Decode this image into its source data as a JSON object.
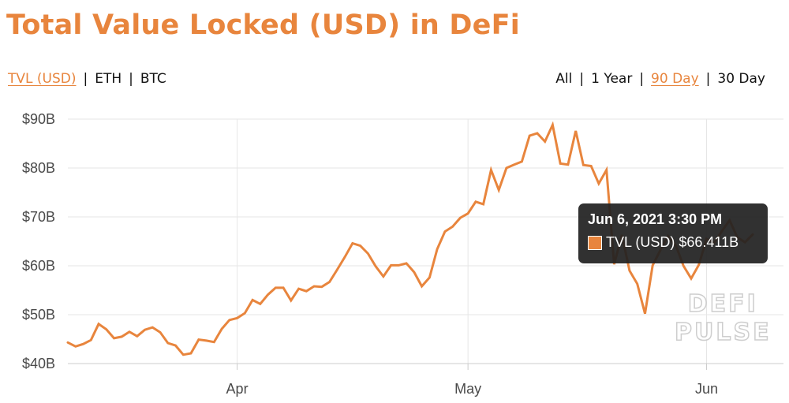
{
  "title": "Total Value Locked (USD) in DeFi",
  "metric_toggle": {
    "options": [
      "TVL (USD)",
      "ETH",
      "BTC"
    ],
    "active": "TVL (USD)"
  },
  "range_toggle": {
    "options": [
      "All",
      "1 Year",
      "90 Day",
      "30 Day"
    ],
    "active": "90 Day"
  },
  "watermark": {
    "line1": "DEFI",
    "line2": "PULSE"
  },
  "tooltip": {
    "date": "Jun 6, 2021 3:30 PM",
    "series": "TVL (USD)",
    "value": "$66.411B"
  },
  "colors": {
    "series": "#e8853d",
    "title": "#e8853d",
    "grid": "#e6e6e6"
  },
  "chart_data": {
    "type": "line",
    "ylim": [
      40,
      90
    ],
    "yticks": [
      {
        "value": 40,
        "label": "$40B"
      },
      {
        "value": 50,
        "label": "$50B"
      },
      {
        "value": 60,
        "label": "$60B"
      },
      {
        "value": 70,
        "label": "$70B"
      },
      {
        "value": 80,
        "label": "$80B"
      },
      {
        "value": 90,
        "label": "$90B"
      }
    ],
    "xlim": [
      "2021-03-10",
      "2021-06-11"
    ],
    "xticks": [
      {
        "date": "2021-04-01",
        "label": "Apr"
      },
      {
        "date": "2021-05-01",
        "label": "May"
      },
      {
        "date": "2021-06-01",
        "label": "Jun"
      }
    ],
    "grid": true,
    "legend": "none",
    "series": [
      {
        "values": [
          [
            "2021-03-10",
            44.3
          ],
          [
            "2021-03-11",
            43.5
          ],
          [
            "2021-03-12",
            44.0
          ],
          [
            "2021-03-13",
            44.8
          ],
          [
            "2021-03-14",
            48.1
          ],
          [
            "2021-03-15",
            47.0
          ],
          [
            "2021-03-16",
            45.2
          ],
          [
            "2021-03-17",
            45.5
          ],
          [
            "2021-03-18",
            46.5
          ],
          [
            "2021-03-19",
            45.6
          ],
          [
            "2021-03-20",
            46.9
          ],
          [
            "2021-03-21",
            47.4
          ],
          [
            "2021-03-22",
            46.4
          ],
          [
            "2021-03-23",
            44.2
          ],
          [
            "2021-03-24",
            43.7
          ],
          [
            "2021-03-25",
            41.8
          ],
          [
            "2021-03-26",
            42.1
          ],
          [
            "2021-03-27",
            44.9
          ],
          [
            "2021-03-28",
            44.7
          ],
          [
            "2021-03-29",
            44.4
          ],
          [
            "2021-03-30",
            47.1
          ],
          [
            "2021-03-31",
            48.9
          ],
          [
            "2021-04-01",
            49.3
          ],
          [
            "2021-04-02",
            50.3
          ],
          [
            "2021-04-03",
            53.0
          ],
          [
            "2021-04-04",
            52.2
          ],
          [
            "2021-04-05",
            54.1
          ],
          [
            "2021-04-06",
            55.5
          ],
          [
            "2021-04-07",
            55.5
          ],
          [
            "2021-04-08",
            52.9
          ],
          [
            "2021-04-09",
            55.3
          ],
          [
            "2021-04-10",
            54.8
          ],
          [
            "2021-04-11",
            55.8
          ],
          [
            "2021-04-12",
            55.7
          ],
          [
            "2021-04-13",
            56.7
          ],
          [
            "2021-04-14",
            59.2
          ],
          [
            "2021-04-15",
            61.8
          ],
          [
            "2021-04-16",
            64.6
          ],
          [
            "2021-04-17",
            64.1
          ],
          [
            "2021-04-18",
            62.5
          ],
          [
            "2021-04-19",
            59.9
          ],
          [
            "2021-04-20",
            57.8
          ],
          [
            "2021-04-21",
            60.1
          ],
          [
            "2021-04-22",
            60.1
          ],
          [
            "2021-04-23",
            60.5
          ],
          [
            "2021-04-24",
            58.7
          ],
          [
            "2021-04-25",
            55.8
          ],
          [
            "2021-04-26",
            57.6
          ],
          [
            "2021-04-27",
            63.4
          ],
          [
            "2021-04-28",
            67.0
          ],
          [
            "2021-04-29",
            68.0
          ],
          [
            "2021-04-30",
            69.8
          ],
          [
            "2021-05-01",
            70.7
          ],
          [
            "2021-05-02",
            73.1
          ],
          [
            "2021-05-03",
            72.6
          ],
          [
            "2021-05-04",
            79.6
          ],
          [
            "2021-05-05",
            75.5
          ],
          [
            "2021-05-06",
            80.0
          ],
          [
            "2021-05-07",
            80.7
          ],
          [
            "2021-05-08",
            81.3
          ],
          [
            "2021-05-09",
            86.6
          ],
          [
            "2021-05-10",
            87.1
          ],
          [
            "2021-05-11",
            85.4
          ],
          [
            "2021-05-12",
            88.8
          ],
          [
            "2021-05-13",
            80.9
          ],
          [
            "2021-05-14",
            80.7
          ],
          [
            "2021-05-15",
            87.6
          ],
          [
            "2021-05-16",
            80.6
          ],
          [
            "2021-05-17",
            80.4
          ],
          [
            "2021-05-18",
            76.8
          ],
          [
            "2021-05-19",
            79.6
          ],
          [
            "2021-05-20",
            60.3
          ],
          [
            "2021-05-21",
            66.3
          ],
          [
            "2021-05-22",
            59.0
          ],
          [
            "2021-05-23",
            56.3
          ],
          [
            "2021-05-24",
            50.2
          ],
          [
            "2021-05-25",
            60.1
          ],
          [
            "2021-05-26",
            63.2
          ],
          [
            "2021-05-27",
            66.1
          ],
          [
            "2021-05-28",
            64.2
          ],
          [
            "2021-05-29",
            60.0
          ],
          [
            "2021-05-30",
            57.4
          ],
          [
            "2021-05-31",
            60.2
          ],
          [
            "2021-06-01",
            65.5
          ],
          [
            "2021-06-02",
            64.7
          ],
          [
            "2021-06-03",
            67.1
          ],
          [
            "2021-06-04",
            69.3
          ],
          [
            "2021-06-05",
            65.8
          ],
          [
            "2021-06-06",
            64.8
          ],
          [
            "2021-06-07",
            66.4
          ]
        ]
      }
    ]
  }
}
